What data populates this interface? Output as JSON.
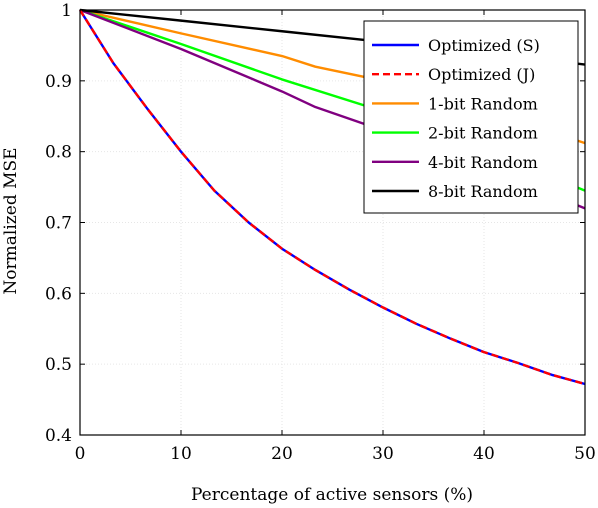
{
  "chart_data": {
    "type": "line",
    "title": "",
    "xlabel": "Percentage of active sensors (%)",
    "ylabel": "Normalized MSE",
    "xlim": [
      0,
      50
    ],
    "ylim": [
      0.4,
      1.0
    ],
    "xticks": [
      0,
      10,
      20,
      30,
      40,
      50
    ],
    "yticks": [
      0.4,
      0.5,
      0.6,
      0.7,
      0.8,
      0.9,
      1.0
    ],
    "xtick_labels": [
      "0",
      "10",
      "20",
      "30",
      "40",
      "50"
    ],
    "ytick_labels": [
      "0.4",
      "0.5",
      "0.6",
      "0.7",
      "0.8",
      "0.9",
      "1"
    ],
    "grid": true,
    "legend_position": "top-right",
    "series": [
      {
        "name": "Optimized (S)",
        "color": "#0000ff",
        "dash": "solid",
        "x": [
          0,
          3.3,
          6.7,
          10,
          13.3,
          16.7,
          20,
          23.3,
          26.7,
          30,
          33.3,
          36.7,
          40,
          43.3,
          46.7,
          50
        ],
        "y": [
          1.0,
          0.925,
          0.86,
          0.8,
          0.745,
          0.7,
          0.663,
          0.633,
          0.605,
          0.58,
          0.557,
          0.536,
          0.517,
          0.502,
          0.485,
          0.472
        ]
      },
      {
        "name": "Optimized (J)",
        "color": "#ff0000",
        "dash": "dashed",
        "x": [
          0,
          3.3,
          6.7,
          10,
          13.3,
          16.7,
          20,
          23.3,
          26.7,
          30,
          33.3,
          36.7,
          40,
          43.3,
          46.7,
          50
        ],
        "y": [
          1.0,
          0.925,
          0.86,
          0.8,
          0.745,
          0.7,
          0.663,
          0.633,
          0.605,
          0.58,
          0.557,
          0.536,
          0.517,
          0.502,
          0.485,
          0.472
        ]
      },
      {
        "name": "1-bit Random",
        "color": "#ff8c00",
        "dash": "solid",
        "x": [
          0,
          10,
          20,
          23.3,
          30,
          40,
          50
        ],
        "y": [
          1.0,
          0.967,
          0.935,
          0.92,
          0.9,
          0.86,
          0.812
        ]
      },
      {
        "name": "2-bit Random",
        "color": "#00ff00",
        "dash": "solid",
        "x": [
          0,
          10,
          20,
          30,
          40,
          50
        ],
        "y": [
          1.0,
          0.952,
          0.902,
          0.857,
          0.803,
          0.745
        ]
      },
      {
        "name": "4-bit Random",
        "color": "#800080",
        "dash": "solid",
        "x": [
          0,
          10,
          20,
          23.3,
          30,
          40,
          50
        ],
        "y": [
          1.0,
          0.945,
          0.885,
          0.863,
          0.83,
          0.778,
          0.72
        ]
      },
      {
        "name": "8-bit Random",
        "color": "#000000",
        "dash": "solid",
        "x": [
          0,
          10,
          20,
          30,
          40,
          50
        ],
        "y": [
          1.0,
          0.985,
          0.97,
          0.955,
          0.94,
          0.923
        ]
      }
    ]
  }
}
